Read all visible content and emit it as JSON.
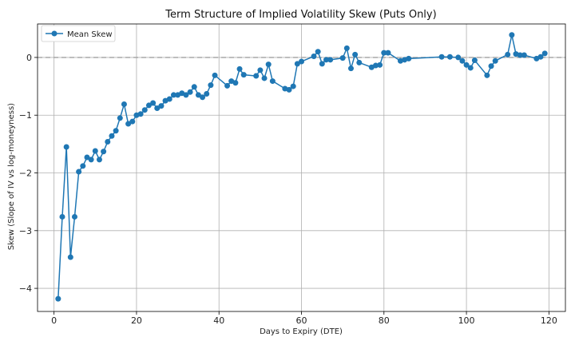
{
  "chart_data": {
    "type": "line",
    "title": "Term Structure of Implied Volatility Skew (Puts Only)",
    "xlabel": "Days to Expiry (DTE)",
    "ylabel": "Skew (Slope of IV vs log-moneyness)",
    "xlim": [
      -4,
      124
    ],
    "ylim": [
      -4.4,
      0.58
    ],
    "xticks": [
      0,
      20,
      40,
      60,
      80,
      100,
      120
    ],
    "yticks": [
      -4,
      -3,
      -2,
      -1,
      0
    ],
    "ytick_labels": [
      "−4",
      "−3",
      "−2",
      "−1",
      "0"
    ],
    "grid": true,
    "legend": "top-left",
    "reference_line": {
      "y": 0,
      "style": "dashed",
      "color": "#a0a0a0"
    },
    "series": [
      {
        "name": "Mean Skew",
        "color": "#1f77b4",
        "marker": "circle",
        "x": [
          1,
          2,
          3,
          4,
          5,
          6,
          7,
          8,
          9,
          10,
          11,
          12,
          13,
          14,
          15,
          16,
          17,
          18,
          19,
          20,
          21,
          22,
          23,
          24,
          25,
          26,
          27,
          28,
          29,
          30,
          31,
          32,
          33,
          34,
          35,
          36,
          37,
          38,
          39,
          42,
          43,
          44,
          45,
          46,
          49,
          50,
          51,
          52,
          53,
          56,
          57,
          58,
          59,
          60,
          63,
          64,
          65,
          66,
          67,
          70,
          71,
          72,
          73,
          74,
          77,
          78,
          79,
          80,
          81,
          84,
          85,
          86,
          94,
          96,
          98,
          99,
          100,
          101,
          102,
          105,
          106,
          107,
          110,
          111,
          112,
          113,
          114,
          117,
          118,
          119
        ],
        "y": [
          -4.18,
          -2.76,
          -1.55,
          -3.46,
          -2.76,
          -1.98,
          -1.88,
          -1.73,
          -1.77,
          -1.62,
          -1.77,
          -1.63,
          -1.46,
          -1.36,
          -1.27,
          -1.05,
          -0.81,
          -1.15,
          -1.11,
          -1.0,
          -0.98,
          -0.91,
          -0.83,
          -0.79,
          -0.88,
          -0.84,
          -0.75,
          -0.72,
          -0.65,
          -0.65,
          -0.62,
          -0.65,
          -0.6,
          -0.51,
          -0.65,
          -0.69,
          -0.63,
          -0.48,
          -0.31,
          -0.49,
          -0.41,
          -0.44,
          -0.2,
          -0.3,
          -0.32,
          -0.22,
          -0.36,
          -0.12,
          -0.41,
          -0.54,
          -0.56,
          -0.5,
          -0.11,
          -0.07,
          0.02,
          0.1,
          -0.11,
          -0.04,
          -0.04,
          -0.01,
          0.16,
          -0.19,
          0.05,
          -0.09,
          -0.17,
          -0.14,
          -0.13,
          0.08,
          0.08,
          -0.06,
          -0.04,
          -0.02,
          0.01,
          0.01,
          0.0,
          -0.06,
          -0.13,
          -0.18,
          -0.05,
          -0.31,
          -0.15,
          -0.06,
          0.05,
          0.39,
          0.06,
          0.04,
          0.04,
          -0.02,
          0.01,
          0.07
        ]
      }
    ]
  }
}
